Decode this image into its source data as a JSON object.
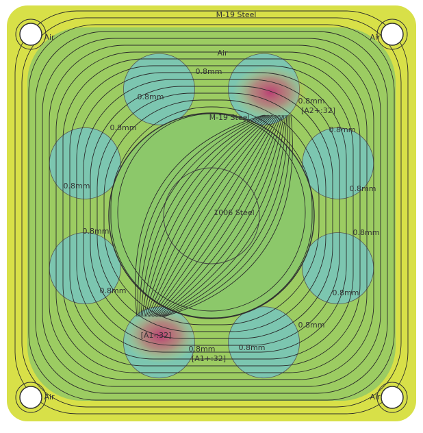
{
  "labels": [
    "M-19 Steel",
    "Air",
    "Air",
    "Air",
    "0.8mm",
    "0.8mm",
    "0.8mm",
    "0.8mm",
    "[A2+:32]",
    "0.8mm",
    "M-19 Steel",
    "0.8mm",
    "0.8mm",
    "1006 Steel",
    "0.8mm",
    "0.8mm",
    "0.8mm",
    "0.8mm",
    "[A1-:32]",
    "0.8mm",
    "[A1+:32]",
    "0.8mm",
    "0.8mm",
    "Air",
    "Air"
  ]
}
